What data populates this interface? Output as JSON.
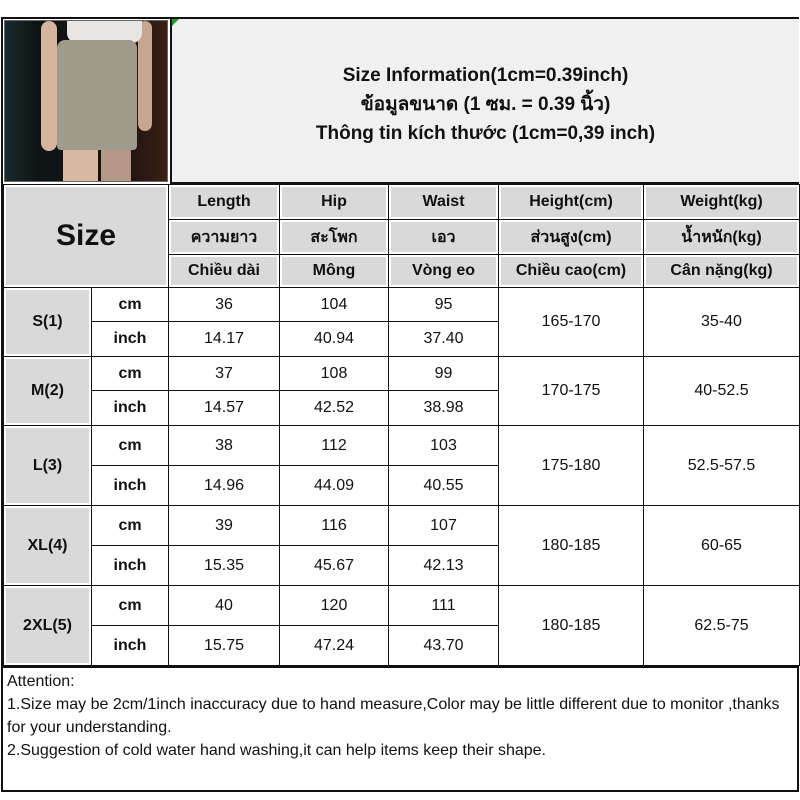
{
  "title": {
    "en": "Size Information(1cm=0.39inch)",
    "th": "ข้อมูลขนาด (1 ซม. = 0.39 นิ้ว)",
    "vi": "Thông tin kích thước (1cm=0,39 inch)"
  },
  "size_label": "Size",
  "columns": [
    {
      "en": "Length",
      "th": "ความยาว",
      "vi": "Chiều dài"
    },
    {
      "en": "Hip",
      "th": "สะโพก",
      "vi": "Mông"
    },
    {
      "en": "Waist",
      "th": "เอว",
      "vi": "Vòng eo"
    },
    {
      "en": "Height(cm)",
      "th": "ส่วนสูง(cm)",
      "vi": "Chiều cao(cm)"
    },
    {
      "en": "Weight(kg)",
      "th": "น้ำหนัก(kg)",
      "vi": "Cân nặng(kg)"
    }
  ],
  "units": {
    "cm": "cm",
    "inch": "inch"
  },
  "rows": [
    {
      "size": "S(1)",
      "cm": [
        "36",
        "104",
        "95"
      ],
      "inch": [
        "14.17",
        "40.94",
        "37.40"
      ],
      "height": "165-170",
      "weight": "35-40"
    },
    {
      "size": "M(2)",
      "cm": [
        "37",
        "108",
        "99"
      ],
      "inch": [
        "14.57",
        "42.52",
        "38.98"
      ],
      "height": "170-175",
      "weight": "40-52.5"
    },
    {
      "size": "L(3)",
      "cm": [
        "38",
        "112",
        "103"
      ],
      "inch": [
        "14.96",
        "44.09",
        "40.55"
      ],
      "height": "175-180",
      "weight": "52.5-57.5"
    },
    {
      "size": "XL(4)",
      "cm": [
        "39",
        "116",
        "107"
      ],
      "inch": [
        "15.35",
        "45.67",
        "42.13"
      ],
      "height": "180-185",
      "weight": "60-65"
    },
    {
      "size": "2XL(5)",
      "cm": [
        "40",
        "120",
        "111"
      ],
      "inch": [
        "15.75",
        "47.24",
        "43.70"
      ],
      "height": "180-185",
      "weight": "62.5-75"
    }
  ],
  "attention": {
    "heading": "Attention:",
    "notes": [
      "1.Size may be 2cm/1inch inaccuracy due to hand measure,Color may be little different due to monitor ,thanks for your understanding.",
      "2.Suggestion of cold water hand washing,it can help items keep their shape."
    ]
  }
}
